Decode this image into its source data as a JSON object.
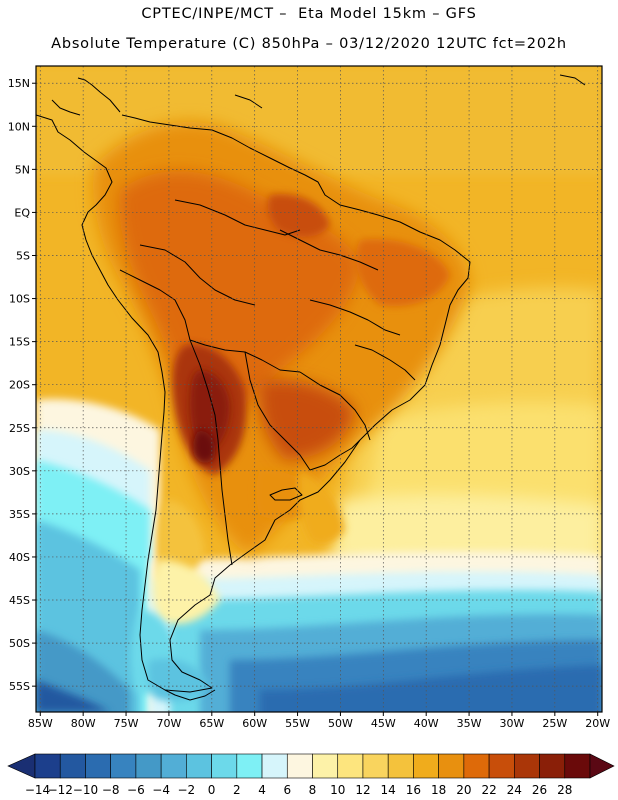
{
  "header": {
    "line1": "CPTEC/INPE/MCT –  Eta Model 15km – GFS",
    "line2": "Absolute Temperature (C) 850hPa – 03/12/2020 12UTC fct=202h"
  },
  "map": {
    "lon_range": [
      -85.5,
      -19.5
    ],
    "lat_range": [
      -58,
      17
    ],
    "lon_ticks": [
      "85W",
      "80W",
      "75W",
      "70W",
      "65W",
      "60W",
      "55W",
      "50W",
      "45W",
      "40W",
      "35W",
      "30W",
      "25W",
      "20W"
    ],
    "lat_ticks": [
      "15N",
      "10N",
      "5N",
      "EQ",
      "5S",
      "10S",
      "15S",
      "20S",
      "25S",
      "30S",
      "35S",
      "40S",
      "45S",
      "50S",
      "55S"
    ],
    "grid_lines": true
  },
  "colorbar": {
    "labels": [
      "-14",
      "-12",
      "-10",
      "-8",
      "-6",
      "-4",
      "-2",
      "0",
      "2",
      "4",
      "6",
      "8",
      "10",
      "12",
      "14",
      "16",
      "18",
      "20",
      "22",
      "24",
      "26",
      "28"
    ],
    "colors": [
      "#1c3f8c",
      "#2358a0",
      "#2b6cb0",
      "#3783bf",
      "#4499c7",
      "#52aed6",
      "#5cc3e0",
      "#6cd9ea",
      "#7ef0f5",
      "#d6f5fb",
      "#fdf6e0",
      "#fdf2a8",
      "#fde57e",
      "#f9d45e",
      "#f4c23c",
      "#f0ac1c",
      "#e8900f",
      "#de6a09",
      "#c84e0a",
      "#aa3608",
      "#8a1f08",
      "#6a0a0a"
    ],
    "under_color": "#1a2f73",
    "over_color": "#5a0814"
  }
}
